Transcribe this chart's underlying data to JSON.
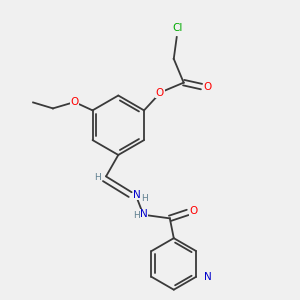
{
  "bg_color": "#f0f0f0",
  "atom_colors": {
    "C": "#3a3a3a",
    "O": "#ff0000",
    "N": "#0000cc",
    "Cl": "#00aa00",
    "H": "#5f8090"
  },
  "figsize": [
    3.0,
    3.0
  ],
  "dpi": 100
}
